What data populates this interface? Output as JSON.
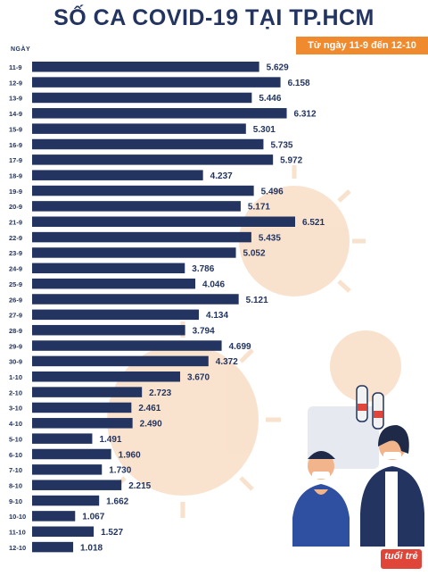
{
  "title": "SỐ CA COVID-19 TẠI TP.HCM",
  "badge": "Từ ngày 11-9 đến 12-10",
  "logo": "tuổi trẻ",
  "colors": {
    "bar": "#22345f",
    "title": "#22345f",
    "badge": "#f08a2e",
    "virus": "#f6cfae"
  },
  "chart_data": {
    "type": "bar",
    "orientation": "horizontal",
    "title": "SỐ CA COVID-19 TẠI TP.HCM",
    "subtitle": "Từ ngày 11-9 đến 12-10",
    "ylabel": "NGÀY",
    "xlabel": "",
    "categories": [
      "11-9",
      "12-9",
      "13-9",
      "14-9",
      "15-9",
      "16-9",
      "17-9",
      "18-9",
      "19-9",
      "20-9",
      "21-9",
      "22-9",
      "23-9",
      "24-9",
      "25-9",
      "26-9",
      "27-9",
      "28-9",
      "29-9",
      "30-9",
      "1-10",
      "2-10",
      "3-10",
      "4-10",
      "5-10",
      "6-10",
      "7-10",
      "8-10",
      "9-10",
      "10-10",
      "11-10",
      "12-10"
    ],
    "values": [
      5629,
      6158,
      5446,
      6312,
      5301,
      5735,
      5972,
      4237,
      5496,
      5171,
      6521,
      5435,
      5052,
      3786,
      4046,
      5121,
      4134,
      3794,
      4699,
      4372,
      3670,
      2723,
      2461,
      2490,
      1491,
      1960,
      1730,
      2215,
      1662,
      1067,
      1527,
      1018
    ],
    "value_labels": [
      "5.629",
      "6.158",
      "5.446",
      "6.312",
      "5.301",
      "5.735",
      "5.972",
      "4.237",
      "5.496",
      "5.171",
      "6.521",
      "5.435",
      "5.052",
      "3.786",
      "4.046",
      "5.121",
      "4.134",
      "3.794",
      "4.699",
      "4.372",
      "3.670",
      "2.723",
      "2.461",
      "2.490",
      "1.491",
      "1.960",
      "1.730",
      "2.215",
      "1.662",
      "1.067",
      "1.527",
      "1.018"
    ],
    "grid": false,
    "legend": "none"
  }
}
